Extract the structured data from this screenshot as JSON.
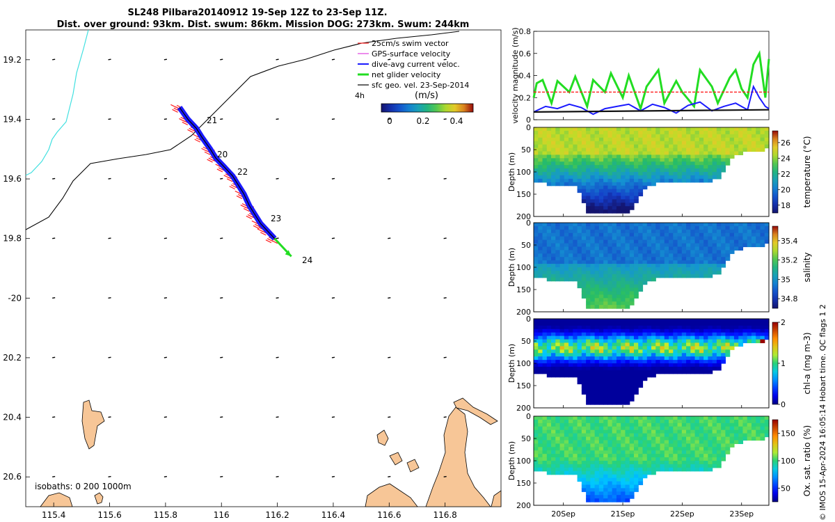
{
  "title": {
    "line1": "SL248 Pilbara20140912 19-Sep 12Z to 23-Sep 11Z.",
    "line2": "Dist. over ground: 93km. Dist. swum: 86km. Mission DOG: 273km. Swum: 244km"
  },
  "map": {
    "xticks": [
      115.4,
      115.6,
      115.8,
      116,
      116.2,
      116.4,
      116.6,
      116.8
    ],
    "xtick_labels": [
      "115.4",
      "115.6",
      "115.8",
      "116",
      "116.2",
      "116.4",
      "116.6",
      "116.8"
    ],
    "yticks": [
      -19.2,
      -19.4,
      -19.6,
      -19.8,
      -20,
      -20.2,
      -20.4,
      -20.6
    ],
    "ytick_labels": [
      "19.2",
      "19.4",
      "19.6",
      "19.8",
      "-20",
      "20.2",
      "20.4",
      "20.6"
    ],
    "xlim": [
      115.3,
      117.0
    ],
    "ylim": [
      -20.7,
      -19.1
    ],
    "legend": [
      {
        "label": "25cm/s swim vector",
        "color": "#ff2020"
      },
      {
        "label": "GPS-surface velocity",
        "color": "#e040e0"
      },
      {
        "label": "dive-avg current veloc.",
        "color": "#1a1aff"
      },
      {
        "label": "net glider velocity",
        "color": "#22dd22"
      },
      {
        "label": "sfc geo. vel. 23-Sep-2014",
        "color": "#000000"
      }
    ],
    "interval_label": "4h",
    "colorbar_unit": "(m/s)",
    "colorbar_ticks": [
      "0",
      "0.2",
      "0.4"
    ],
    "day_labels": [
      "21",
      "20",
      "22",
      "23",
      "24"
    ],
    "isobaths_label": "isobaths: 0   200  1000m",
    "track": [
      [
        115.85,
        -19.36
      ],
      [
        115.88,
        -19.4
      ],
      [
        115.91,
        -19.43
      ],
      [
        115.93,
        -19.46
      ],
      [
        115.96,
        -19.5
      ],
      [
        115.98,
        -19.53
      ],
      [
        116.01,
        -19.56
      ],
      [
        116.04,
        -19.59
      ],
      [
        116.06,
        -19.62
      ],
      [
        116.08,
        -19.65
      ],
      [
        116.1,
        -19.69
      ],
      [
        116.12,
        -19.72
      ],
      [
        116.14,
        -19.75
      ],
      [
        116.16,
        -19.77
      ],
      [
        116.19,
        -19.8
      ]
    ],
    "net_vector": [
      [
        116.19,
        -19.8
      ],
      [
        116.25,
        -19.86
      ]
    ]
  },
  "chart_data": [
    {
      "type": "line",
      "title": "velocity magnitude",
      "ylabel": "velocity magnitude (m/s)",
      "ylim": [
        0,
        0.8
      ],
      "yticks": [
        "0",
        "0.2",
        "0.4",
        "0.6",
        "0.8"
      ],
      "x_days": [
        19.5,
        23.46
      ],
      "series": [
        {
          "name": "net glider velocity",
          "color": "#22dd22",
          "x": [
            19.5,
            19.55,
            19.65,
            19.8,
            19.9,
            20.1,
            20.2,
            20.4,
            20.5,
            20.7,
            20.8,
            21.0,
            21.1,
            21.3,
            21.4,
            21.6,
            21.7,
            21.9,
            22.0,
            22.2,
            22.3,
            22.5,
            22.6,
            22.8,
            22.9,
            23.0,
            23.1,
            23.2,
            23.3,
            23.4,
            23.46
          ],
          "y": [
            0.2,
            0.33,
            0.36,
            0.15,
            0.35,
            0.25,
            0.39,
            0.12,
            0.36,
            0.25,
            0.42,
            0.2,
            0.4,
            0.1,
            0.3,
            0.45,
            0.15,
            0.35,
            0.25,
            0.12,
            0.45,
            0.3,
            0.15,
            0.38,
            0.45,
            0.28,
            0.2,
            0.5,
            0.6,
            0.2,
            0.55
          ]
        },
        {
          "name": "25cm/s swim vector",
          "color": "#ff2020",
          "x": [
            19.5,
            23.46
          ],
          "y": [
            0.25,
            0.25
          ]
        },
        {
          "name": "dive-avg current veloc.",
          "color": "#1a1aff",
          "x": [
            19.5,
            19.7,
            19.9,
            20.1,
            20.3,
            20.5,
            20.7,
            20.9,
            21.1,
            21.3,
            21.5,
            21.7,
            21.9,
            22.1,
            22.3,
            22.5,
            22.7,
            22.9,
            23.1,
            23.2,
            23.3,
            23.4,
            23.46
          ],
          "y": [
            0.07,
            0.12,
            0.1,
            0.14,
            0.11,
            0.05,
            0.1,
            0.12,
            0.14,
            0.08,
            0.14,
            0.11,
            0.06,
            0.13,
            0.16,
            0.08,
            0.12,
            0.15,
            0.09,
            0.3,
            0.2,
            0.12,
            0.1
          ]
        },
        {
          "name": "sfc geo. vel.",
          "color": "#111111",
          "x": [
            19.5,
            23.46
          ],
          "y": [
            0.07,
            0.09
          ]
        }
      ]
    },
    {
      "type": "heatmap",
      "name": "temperature",
      "ylabel": "Depth (m)",
      "colorbar_label": "temperature (°C)",
      "clim": [
        17,
        27.5
      ],
      "colorbar_ticks": [
        "18",
        "20",
        "22",
        "24",
        "26"
      ],
      "colorbar_values": [
        18,
        20,
        22,
        24,
        26
      ],
      "yticks": [
        "0",
        "50",
        "100",
        "150",
        "200"
      ]
    },
    {
      "type": "heatmap",
      "name": "salinity",
      "ylabel": "Depth (m)",
      "colorbar_label": "salinity",
      "clim": [
        34.7,
        35.55
      ],
      "colorbar_ticks": [
        "34.8",
        "35",
        "35.2",
        "35.4"
      ],
      "colorbar_values": [
        34.8,
        35,
        35.2,
        35.4
      ],
      "yticks": [
        "0",
        "50",
        "100",
        "150",
        "200"
      ]
    },
    {
      "type": "heatmap",
      "name": "chl-a",
      "ylabel": "Depth (m)",
      "colorbar_label": "chl-a (mg m-3)",
      "clim": [
        0,
        2
      ],
      "colorbar_ticks": [
        "0",
        "1",
        "2"
      ],
      "colorbar_values": [
        0,
        1,
        2
      ],
      "yticks": [
        "0",
        "50",
        "100",
        "150",
        "200"
      ]
    },
    {
      "type": "heatmap",
      "name": "oxygen",
      "ylabel": "Depth (m)",
      "colorbar_label": "Ox. sat. ratio (%)",
      "clim": [
        25,
        175
      ],
      "colorbar_ticks": [
        "50",
        "100",
        "150"
      ],
      "colorbar_values": [
        50,
        100,
        150
      ],
      "yticks": [
        "0",
        "50",
        "100",
        "150",
        "200"
      ]
    }
  ],
  "time_axis": {
    "labels": [
      "20Sep",
      "21Sep",
      "22Sep",
      "23Sep"
    ],
    "values": [
      20,
      21,
      22,
      23
    ],
    "range": [
      19.5,
      23.46
    ]
  },
  "footer": "© IMOS 15-Apr-2024 16:05:14 Hobart time. QC flags 1  2",
  "colors": {
    "land": "#f7c697",
    "track_blue": "#1a1aff",
    "swim_red": "#ff2020",
    "net_green": "#22dd22",
    "coast_cyan": "#40e0e0"
  }
}
